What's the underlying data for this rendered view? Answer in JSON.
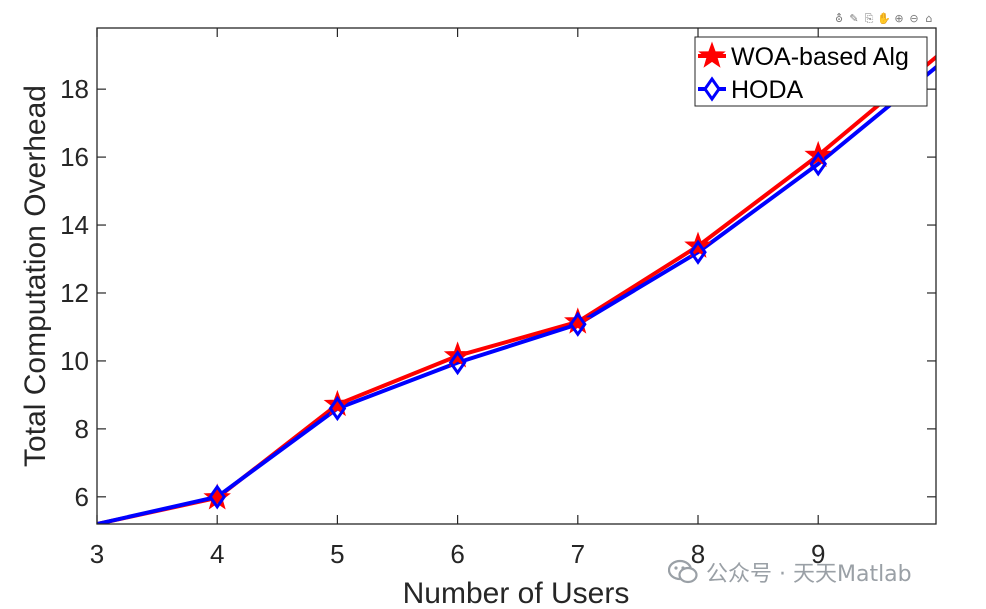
{
  "toolbar": {
    "icons": [
      "data-tips-icon",
      "brush-icon",
      "export-icon",
      "pan-icon",
      "zoom-in-icon",
      "zoom-out-icon",
      "home-icon"
    ]
  },
  "watermark": {
    "text": "公众号 · 天天Matlab"
  },
  "colors": {
    "woa": "#ff0000",
    "hoda": "#0000ff",
    "axis": "#262626"
  },
  "chart_data": {
    "type": "line",
    "title": "",
    "xlabel": "Number of Users",
    "ylabel": "Total Computation Overhead",
    "xlim": [
      3,
      9.98
    ],
    "ylim": [
      5.2,
      19.8
    ],
    "xticks": [
      3,
      4,
      5,
      6,
      7,
      8,
      9
    ],
    "yticks": [
      6,
      8,
      10,
      12,
      14,
      16,
      18
    ],
    "grid": false,
    "legend_position": "top-right",
    "x": [
      3,
      4,
      5,
      6,
      7,
      8,
      9,
      10
    ],
    "series": [
      {
        "name": "WOA-based Alg",
        "marker": "star",
        "color": "#ff0000",
        "values": [
          5.2,
          5.97,
          8.72,
          10.15,
          11.15,
          13.38,
          16.05,
          19.0
        ]
      },
      {
        "name": "HODA",
        "marker": "diamond",
        "color": "#0000ff",
        "values": [
          5.2,
          6.0,
          8.6,
          9.95,
          11.08,
          13.2,
          15.8,
          18.7
        ]
      }
    ]
  }
}
